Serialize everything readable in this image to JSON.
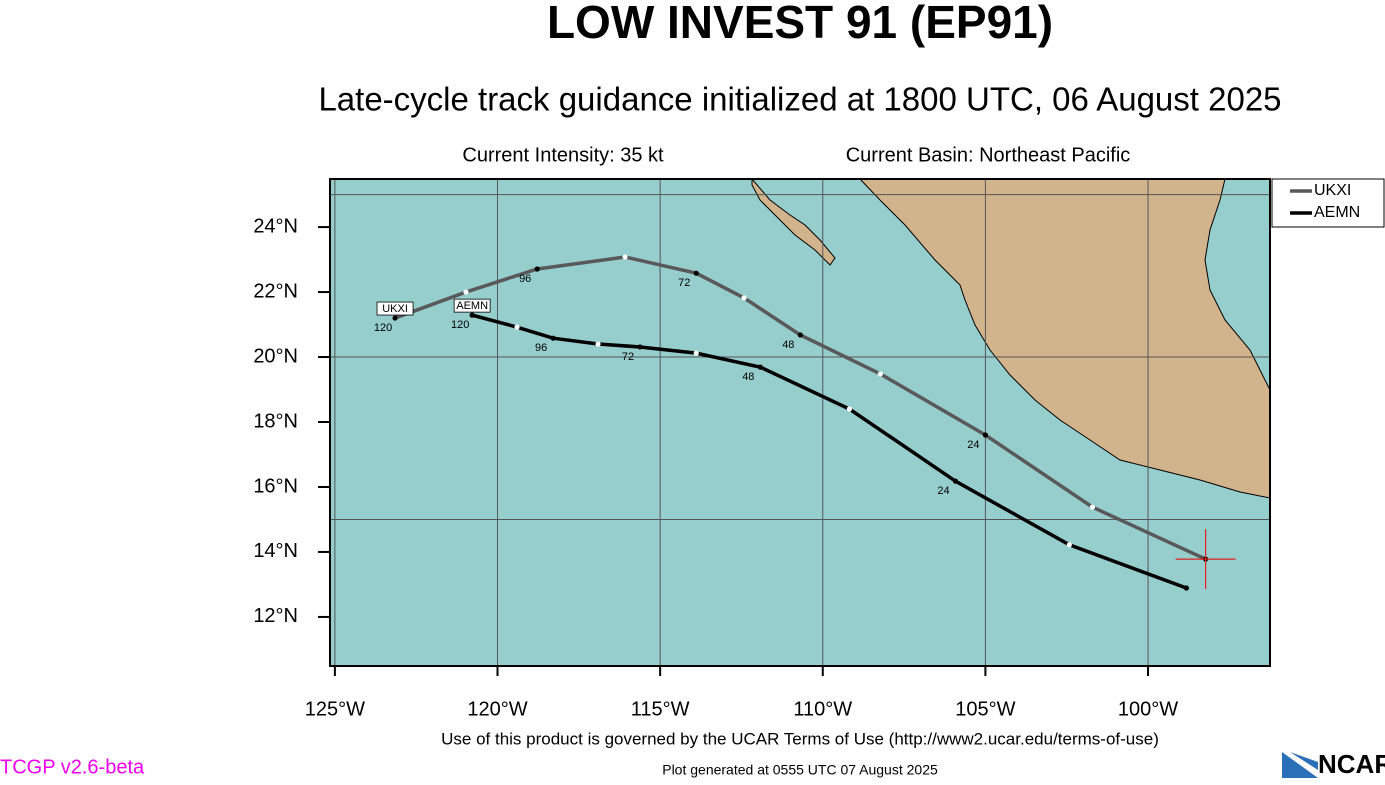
{
  "chart_data": {
    "type": "track",
    "title": "LOW INVEST 91 (EP91)",
    "subtitle": "Late-cycle track guidance initialized at 1800 UTC, 06 August 2025",
    "intensity": "Current Intensity: 35 kt",
    "basin": "Current Basin: Northeast Pacific",
    "xlim": [
      -125.15,
      -96.25
    ],
    "ylim": [
      10.49,
      25.48
    ],
    "xticks": [
      {
        "value": -125,
        "label": "125°W"
      },
      {
        "value": -120,
        "label": "120°W"
      },
      {
        "value": -115,
        "label": "115°W"
      },
      {
        "value": -110,
        "label": "110°W"
      },
      {
        "value": -105,
        "label": "105°W"
      },
      {
        "value": -100,
        "label": "100°W"
      }
    ],
    "yticks": [
      {
        "value": 12,
        "label": "12°N"
      },
      {
        "value": 14,
        "label": "14°N"
      },
      {
        "value": 16,
        "label": "16°N"
      },
      {
        "value": 18,
        "label": "18°N"
      },
      {
        "value": 20,
        "label": "20°N"
      },
      {
        "value": 22,
        "label": "22°N"
      },
      {
        "value": 24,
        "label": "24°N"
      }
    ],
    "ygrid": [
      15,
      20,
      25
    ],
    "current_position": [
      -98.23,
      13.78
    ],
    "hours": [
      0,
      12,
      24,
      36,
      48,
      60,
      72,
      84,
      96,
      108,
      120
    ],
    "labeled_hours": [
      24,
      48,
      72,
      96,
      120
    ],
    "series": [
      {
        "name": "UKXI",
        "color": "#595959",
        "x": [
          -98.23,
          -101.71,
          -105.0,
          -108.23,
          -110.69,
          -112.42,
          -113.89,
          -116.08,
          -118.78,
          -120.97,
          -123.15
        ],
        "y": [
          13.78,
          15.38,
          17.6,
          19.48,
          20.68,
          21.82,
          22.58,
          23.08,
          22.71,
          22.0,
          21.2
        ]
      },
      {
        "name": "AEMN",
        "color": "#000000",
        "x": [
          -98.82,
          -102.42,
          -105.92,
          -109.18,
          -111.92,
          -113.89,
          -115.62,
          -116.91,
          -118.29,
          -119.4,
          -120.78
        ],
        "y": [
          12.89,
          14.22,
          16.18,
          18.4,
          19.69,
          20.12,
          20.31,
          20.4,
          20.58,
          20.92,
          21.29
        ]
      }
    ],
    "terms": "Use of this product is governed by the UCAR Terms of Use (http://www2.ucar.edu/terms-of-use)",
    "version": "TCGP v2.6-beta",
    "generated": "Plot generated at 0555 UTC   07 August 2025",
    "logo": "NCAR"
  }
}
